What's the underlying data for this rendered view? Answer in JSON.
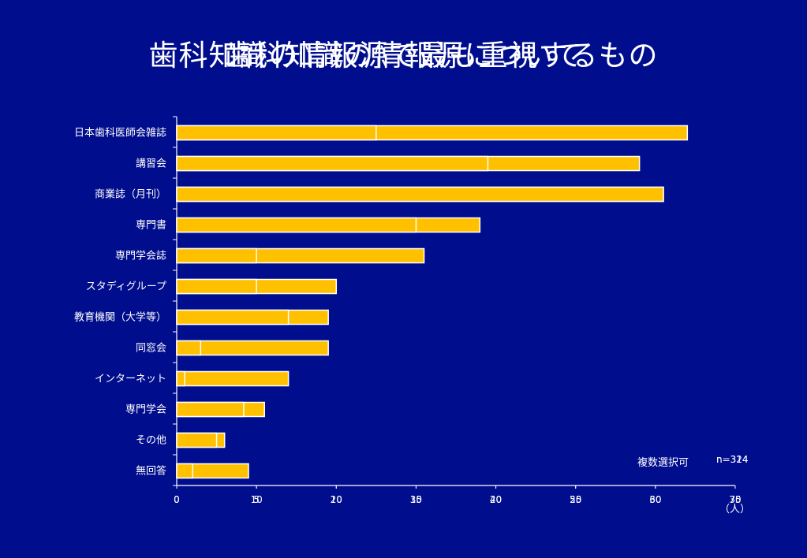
{
  "titles": [
    "歯科知識の情報源について",
    "歯科知識の情報源で最も重視するもの"
  ],
  "notes": {
    "selection": "複数選択可",
    "n_a": "n=324",
    "n_b": "n=314",
    "unit": "（人）"
  },
  "colors": {
    "background": "#000d8c",
    "bar": "#ffc000",
    "bar_border": "#ffffff"
  },
  "chart_data": [
    {
      "type": "bar",
      "orientation": "horizontal",
      "categories": [
        "日本歯科医師会雑誌",
        "講習会",
        "商業誌（月刊）",
        "専門書",
        "専門学会誌",
        "スタディグループ",
        "教育機関（大学等）",
        "同窓会",
        "インターネット",
        "専門学会",
        "その他",
        "無回答"
      ],
      "values": [
        12.5,
        19.5,
        30.5,
        15,
        5,
        5,
        7,
        1.5,
        0.5,
        4.2,
        2.5,
        1
      ],
      "xlim": [
        0,
        35
      ],
      "x_ticks": [
        0,
        5,
        10,
        15,
        20,
        25,
        30,
        35
      ]
    },
    {
      "type": "bar",
      "orientation": "horizontal",
      "categories": [
        "日本歯科医師会雑誌",
        "講習会",
        "商業誌（月刊）",
        "専門書",
        "専門学会誌",
        "スタディグループ",
        "教育機関（大学等）",
        "同窓会",
        "インターネット",
        "専門学会",
        "その他",
        "無回答"
      ],
      "values": [
        64,
        58,
        61,
        38,
        31,
        20,
        19,
        19,
        14,
        11,
        6,
        9
      ],
      "xlim": [
        0,
        70
      ],
      "x_ticks": [
        0,
        10,
        20,
        30,
        40,
        50,
        60,
        70
      ]
    }
  ]
}
